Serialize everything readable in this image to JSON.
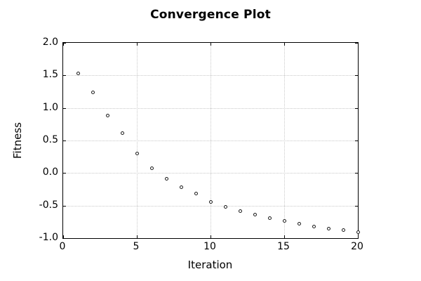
{
  "figure": {
    "background": "#ffffff"
  },
  "chart_data": {
    "type": "scatter",
    "title": "Convergence Plot",
    "xlabel": "Iteration",
    "ylabel": "Fitness",
    "xlim": [
      0,
      20
    ],
    "ylim": [
      -1.0,
      2.0
    ],
    "xticks": [
      0,
      5,
      10,
      15,
      20
    ],
    "xtick_labels": [
      "0",
      "5",
      "10",
      "15",
      "20"
    ],
    "yticks": [
      2.0,
      1.5,
      1.0,
      0.5,
      0.0,
      -0.5,
      -1.0
    ],
    "ytick_labels": [
      "2.0",
      "1.5",
      "1.0",
      "0.5",
      "0.0",
      "-0.5",
      "-1.0"
    ],
    "grid": true,
    "legend": "none",
    "marker": "open-circle",
    "colors": {
      "marker": "#1a1a1a",
      "grid": "#c9c9c9",
      "axis": "#000000",
      "text": "#000000",
      "background": "#ffffff"
    },
    "x": [
      1,
      2,
      3,
      4,
      5,
      6,
      7,
      8,
      9,
      10,
      11,
      12,
      13,
      14,
      15,
      16,
      17,
      18,
      19,
      20
    ],
    "y": [
      1.53,
      1.24,
      0.88,
      0.61,
      0.3,
      0.07,
      -0.09,
      -0.22,
      -0.31,
      -0.44,
      -0.52,
      -0.58,
      -0.64,
      -0.69,
      -0.74,
      -0.78,
      -0.82,
      -0.85,
      -0.88,
      -0.91
    ]
  }
}
